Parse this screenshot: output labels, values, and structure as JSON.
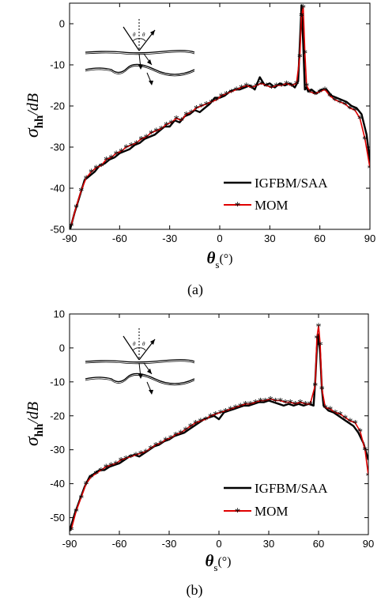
{
  "chart_data": [
    {
      "type": "line",
      "panel_label": "(a)",
      "ylabel": "σhh/dB",
      "ylabel_main": "σ",
      "ylabel_sub": "hh",
      "ylabel_rest": "/dB",
      "xlabel": "θs(°)",
      "xlabel_main": "θ",
      "xlabel_sub": "s",
      "xlabel_rest": "(°)",
      "xlim": [
        -90,
        90
      ],
      "ylim": [
        -50,
        5
      ],
      "xticks": [
        -90,
        -60,
        -30,
        0,
        30,
        60,
        90
      ],
      "yticks": [
        -50,
        -40,
        -30,
        -20,
        -10,
        0
      ],
      "x_tick_labels": [
        "-90",
        "-60",
        "-30",
        "0",
        "30",
        "60",
        "90"
      ],
      "y_tick_labels": [
        "-50",
        "-40",
        "-30",
        "-20",
        "-10",
        "0"
      ],
      "grid": false,
      "legend_position": "bottom-right",
      "specular_angle": 50,
      "series": [
        {
          "name": "IGFBM/SAA",
          "color": "#000000",
          "marker": "none",
          "x": [
            -90,
            -87,
            -84,
            -81,
            -78,
            -75,
            -72,
            -69,
            -66,
            -63,
            -60,
            -57,
            -54,
            -51,
            -48,
            -45,
            -42,
            -39,
            -36,
            -33,
            -30,
            -27,
            -24,
            -21,
            -18,
            -15,
            -12,
            -9,
            -6,
            -3,
            0,
            3,
            6,
            9,
            12,
            15,
            18,
            21,
            24,
            27,
            30,
            33,
            36,
            39,
            42,
            45,
            47,
            48,
            49,
            50,
            51,
            52,
            53,
            55,
            58,
            61,
            64,
            67,
            70,
            73,
            76,
            79,
            82,
            85,
            88,
            90
          ],
          "y": [
            -50.5,
            -46,
            -42,
            -38,
            -37,
            -36,
            -34.5,
            -34,
            -33,
            -32.5,
            -31.5,
            -31,
            -30.5,
            -29.5,
            -29,
            -28,
            -27.5,
            -27,
            -26,
            -25,
            -25,
            -23.5,
            -24,
            -22.5,
            -22,
            -21,
            -21.5,
            -20.5,
            -19.5,
            -18,
            -18,
            -17.5,
            -16.5,
            -16,
            -16,
            -15.5,
            -15,
            -16,
            -13,
            -15,
            -14.5,
            -15.5,
            -14.5,
            -15,
            -14.5,
            -15.5,
            -14,
            -5,
            4.5,
            -5,
            -16,
            -15.5,
            -16.5,
            -16,
            -17,
            -16,
            -16,
            -17.5,
            -18,
            -18.5,
            -19,
            -20,
            -20.5,
            -22,
            -27,
            -33.5
          ]
        },
        {
          "name": "MOM",
          "color": "#e00000",
          "marker": "asterisk",
          "x": [
            -89,
            -86,
            -83,
            -80,
            -77,
            -74,
            -71,
            -68,
            -65,
            -62,
            -59,
            -56,
            -53,
            -50,
            -47,
            -44,
            -41,
            -38,
            -35,
            -32,
            -29,
            -26,
            -23,
            -20,
            -17,
            -14,
            -11,
            -8,
            -5,
            -2,
            1,
            4,
            7,
            10,
            13,
            16,
            19,
            22,
            25,
            28,
            31,
            34,
            37,
            40,
            43,
            46,
            48,
            49,
            50,
            51,
            52,
            54,
            57,
            60,
            63,
            66,
            69,
            72,
            75,
            78,
            81,
            84,
            87,
            90
          ],
          "y": [
            -49,
            -44.5,
            -40.5,
            -37.5,
            -36,
            -35,
            -34.5,
            -33,
            -32.5,
            -31.5,
            -31,
            -30,
            -29.5,
            -29,
            -28,
            -27.5,
            -26.5,
            -26,
            -25.5,
            -24.5,
            -24,
            -23,
            -23.5,
            -22,
            -21.5,
            -20.5,
            -20,
            -19.5,
            -19,
            -18.5,
            -17.5,
            -17,
            -16.5,
            -16,
            -15.5,
            -15,
            -15.5,
            -15,
            -14.5,
            -15,
            -15.5,
            -15,
            -15,
            -14.5,
            -15,
            -14.5,
            -8,
            2,
            4,
            -7,
            -15,
            -16.5,
            -17,
            -16.5,
            -16,
            -17.5,
            -18.5,
            -19,
            -19.5,
            -20.5,
            -21,
            -23,
            -28,
            -35
          ]
        }
      ]
    },
    {
      "type": "line",
      "panel_label": "(b)",
      "ylabel": "σhh/dB",
      "ylabel_main": "σ",
      "ylabel_sub": "hh",
      "ylabel_rest": "/dB",
      "xlabel": "θs(°)",
      "xlabel_main": "θ",
      "xlabel_sub": "s",
      "xlabel_rest": "(°)",
      "xlim": [
        -90,
        90
      ],
      "ylim": [
        -55,
        10
      ],
      "xticks": [
        -90,
        -60,
        -30,
        0,
        30,
        60,
        90
      ],
      "yticks": [
        -50,
        -40,
        -30,
        -20,
        -10,
        0,
        10
      ],
      "x_tick_labels": [
        "-90",
        "-60",
        "-30",
        "0",
        "30",
        "60",
        "90"
      ],
      "y_tick_labels": [
        "-50",
        "-40",
        "-30",
        "-20",
        "-10",
        "0",
        "10"
      ],
      "grid": false,
      "legend_position": "bottom-right",
      "specular_angle": 60,
      "series": [
        {
          "name": "IGFBM/SAA",
          "color": "#000000",
          "marker": "none",
          "x": [
            -90,
            -87,
            -84,
            -81,
            -78,
            -75,
            -72,
            -69,
            -66,
            -63,
            -60,
            -57,
            -54,
            -51,
            -48,
            -45,
            -42,
            -39,
            -36,
            -33,
            -30,
            -27,
            -24,
            -21,
            -18,
            -15,
            -12,
            -9,
            -6,
            -3,
            0,
            3,
            6,
            9,
            12,
            15,
            18,
            21,
            24,
            27,
            30,
            33,
            36,
            39,
            42,
            45,
            48,
            51,
            54,
            57,
            58,
            59,
            60,
            61,
            62,
            63,
            66,
            69,
            72,
            75,
            78,
            81,
            84,
            87,
            90
          ],
          "y": [
            -54,
            -49,
            -45,
            -41,
            -38,
            -37,
            -36,
            -36,
            -35,
            -34.5,
            -34,
            -33,
            -32,
            -31.5,
            -32,
            -31,
            -30,
            -29,
            -28.5,
            -27.5,
            -27,
            -26,
            -25.5,
            -25,
            -24,
            -23,
            -22,
            -21,
            -20.5,
            -20,
            -21,
            -19,
            -18.5,
            -18,
            -17.5,
            -17,
            -17,
            -16.5,
            -16,
            -16,
            -15.5,
            -16,
            -16.5,
            -17,
            -16.5,
            -17,
            -16.5,
            -17,
            -16.5,
            -17,
            -10,
            0,
            4,
            -2,
            -12,
            -17,
            -18.5,
            -19,
            -20,
            -21,
            -22,
            -23,
            -25,
            -28,
            -33
          ]
        },
        {
          "name": "MOM",
          "color": "#e00000",
          "marker": "asterisk",
          "x": [
            -89,
            -86,
            -83,
            -80,
            -77,
            -74,
            -71,
            -68,
            -65,
            -62,
            -59,
            -56,
            -53,
            -50,
            -47,
            -44,
            -41,
            -38,
            -35,
            -32,
            -29,
            -26,
            -23,
            -20,
            -17,
            -14,
            -11,
            -8,
            -5,
            -2,
            1,
            4,
            7,
            10,
            13,
            16,
            19,
            22,
            25,
            28,
            31,
            34,
            37,
            40,
            43,
            46,
            49,
            52,
            55,
            58,
            59,
            60,
            61,
            62,
            64,
            67,
            70,
            73,
            76,
            79,
            82,
            85,
            88,
            90
          ],
          "y": [
            -53.5,
            -48,
            -44,
            -40,
            -38,
            -37,
            -36,
            -35,
            -34.5,
            -34,
            -33,
            -32.5,
            -32,
            -31.5,
            -31,
            -30.5,
            -29.5,
            -28.5,
            -28,
            -27,
            -26.5,
            -25.5,
            -25,
            -24,
            -23,
            -22,
            -21.5,
            -21,
            -20,
            -19.5,
            -19,
            -18.5,
            -18,
            -17.5,
            -17,
            -16.5,
            -16.5,
            -16,
            -15.5,
            -15.5,
            -15,
            -15.5,
            -15.5,
            -16,
            -16,
            -16.5,
            -16,
            -16.5,
            -16.5,
            -11,
            3,
            6.5,
            1,
            -12,
            -17.5,
            -18,
            -19,
            -19.5,
            -20.5,
            -21.5,
            -22,
            -24.5,
            -30,
            -37.5
          ]
        }
      ]
    }
  ]
}
